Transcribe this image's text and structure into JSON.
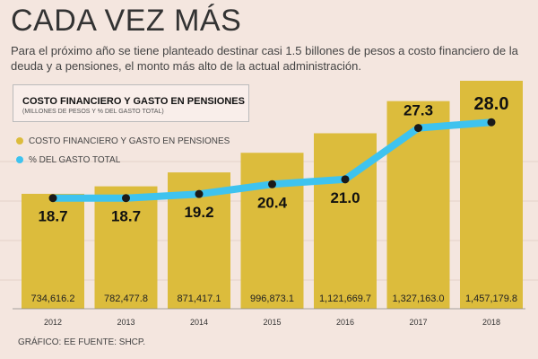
{
  "header": {
    "title": "CADA VEZ MÁS",
    "subtitle": "Para el próximo año se tiene planteado destinar casi 1.5 billones de pesos a costo financiero de la deuda y a pensiones, el monto más alto de la actual administración."
  },
  "legend": {
    "box_title": "COSTO FINANCIERO Y GASTO EN PENSIONES",
    "box_subtitle": "(MILLONES DE PESOS Y % DEL GASTO TOTAL)",
    "series_bar": "COSTO FINANCIERO Y GASTO EN PENSIONES",
    "series_line": "% DEL GASTO TOTAL"
  },
  "footer": {
    "source": "GRÁFICO: EE  FUENTE: SHCP."
  },
  "colors": {
    "bar": "#dcbc3c",
    "line": "#3ec3ef",
    "marker": "#1a1a1a",
    "background": "#f4e6df"
  },
  "chart_data": {
    "type": "bar",
    "categories": [
      "2012",
      "2013",
      "2014",
      "2015",
      "2016",
      "2017",
      "2018"
    ],
    "series": [
      {
        "name": "COSTO FINANCIERO Y GASTO EN PENSIONES",
        "values": [
          734616.2,
          782477.8,
          871417.1,
          996873.1,
          1121669.7,
          1327163.0,
          1457179.8
        ],
        "labels": [
          "734,616.2",
          "782,477.8",
          "871,417.1",
          "996,873.1",
          "1,121,669.7",
          "1,327,163.0",
          "1,457,179.8"
        ]
      },
      {
        "name": "% DEL GASTO TOTAL",
        "type": "line",
        "values": [
          18.7,
          18.7,
          19.2,
          20.4,
          21.0,
          27.3,
          28.0
        ],
        "labels": [
          "18.7",
          "18.7",
          "19.2",
          "20.4",
          "21.0",
          "27.3",
          "28.0"
        ]
      }
    ]
  }
}
